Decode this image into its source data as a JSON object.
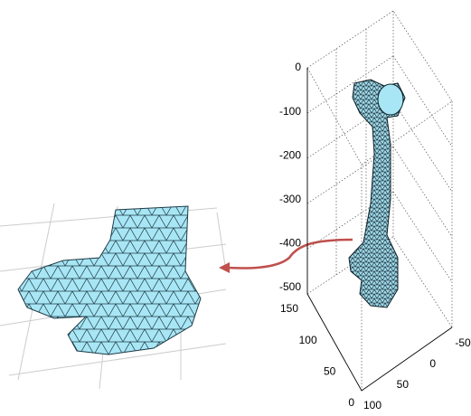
{
  "z_axis": {
    "ticks": [
      0,
      -100,
      -200,
      -300,
      -400,
      -500
    ]
  },
  "y_axis": {
    "ticks": [
      150,
      100,
      50,
      0
    ]
  },
  "x_axis": {
    "ticks": [
      100,
      50,
      0,
      -50
    ]
  }
}
